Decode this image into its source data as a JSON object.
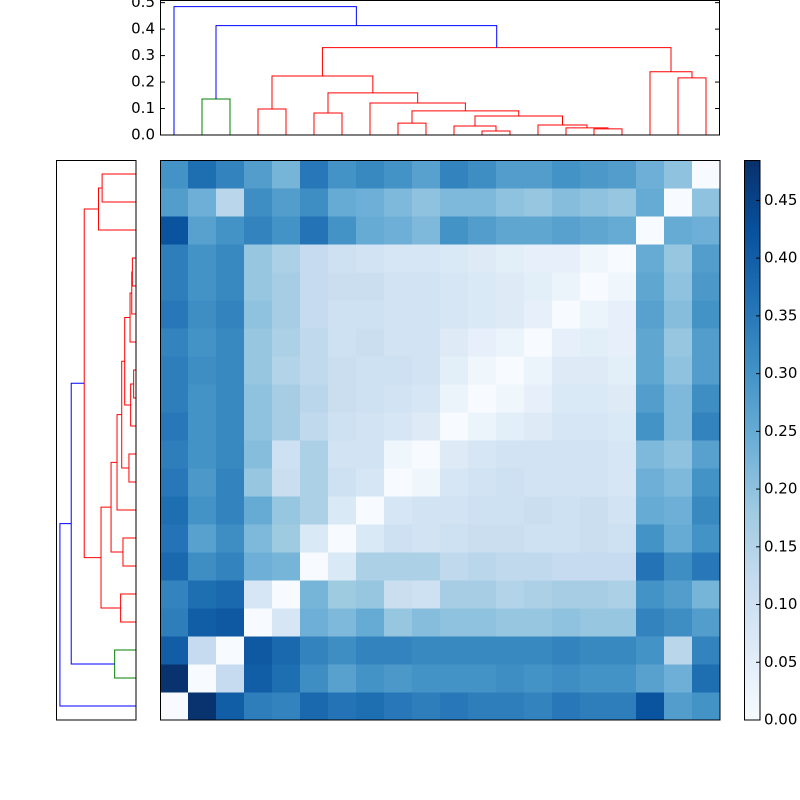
{
  "chart_data": {
    "type": "heatmap",
    "colormap": "Blues",
    "clim": [
      0,
      0.485
    ],
    "cticks": [
      {
        "value": 0,
        "label": "0.00"
      },
      {
        "value": 0.05,
        "label": "0.05"
      },
      {
        "value": 0.1,
        "label": "0.10"
      },
      {
        "value": 0.15,
        "label": "0.15"
      },
      {
        "value": 0.2,
        "label": "0.20"
      },
      {
        "value": 0.25,
        "label": "0.25"
      },
      {
        "value": 0.3,
        "label": "0.30"
      },
      {
        "value": 0.35,
        "label": "0.35"
      },
      {
        "value": 0.4,
        "label": "0.40"
      },
      {
        "value": 0.45,
        "label": "0.45"
      }
    ],
    "dendrogram_xlim": [
      0,
      200
    ],
    "ylim": [
      0,
      0.51
    ],
    "yticks": [
      {
        "value": 0,
        "label": "0.0"
      },
      {
        "value": 0.1,
        "label": "0.1"
      },
      {
        "value": 0.2,
        "label": "0.2"
      },
      {
        "value": 0.3,
        "label": "0.3"
      },
      {
        "value": 0.4,
        "label": "0.4"
      },
      {
        "value": 0.5,
        "label": "0.5"
      }
    ],
    "links": [
      {
        "icoord": [
          15,
          15,
          25,
          25
        ],
        "dcoord": [
          0,
          0.136,
          0.136,
          0
        ],
        "color": "#008000"
      },
      {
        "icoord": [
          35,
          35,
          45,
          45
        ],
        "dcoord": [
          0,
          0.098,
          0.098,
          0
        ],
        "color": "#ff0000"
      },
      {
        "icoord": [
          55,
          55,
          65,
          65
        ],
        "dcoord": [
          0,
          0.083,
          0.083,
          0
        ],
        "color": "#ff0000"
      },
      {
        "icoord": [
          85,
          85,
          95,
          95
        ],
        "dcoord": [
          0,
          0.045,
          0.045,
          0
        ],
        "color": "#ff0000"
      },
      {
        "icoord": [
          115,
          115,
          125,
          125
        ],
        "dcoord": [
          0,
          0.015,
          0.015,
          0
        ],
        "color": "#ff0000"
      },
      {
        "icoord": [
          105,
          105,
          120,
          120
        ],
        "dcoord": [
          0,
          0.034,
          0.034,
          0.015
        ],
        "color": "#ff0000"
      },
      {
        "icoord": [
          155,
          155,
          165,
          165
        ],
        "dcoord": [
          0,
          0.023,
          0.023,
          0
        ],
        "color": "#ff0000"
      },
      {
        "icoord": [
          145,
          145,
          160,
          160
        ],
        "dcoord": [
          0,
          0.027,
          0.027,
          0.023
        ],
        "color": "#ff0000"
      },
      {
        "icoord": [
          135,
          135,
          152.5,
          152.5
        ],
        "dcoord": [
          0,
          0.038,
          0.038,
          0.027
        ],
        "color": "#ff0000"
      },
      {
        "icoord": [
          112.5,
          112.5,
          143.75,
          143.75
        ],
        "dcoord": [
          0.034,
          0.072,
          0.072,
          0.038
        ],
        "color": "#ff0000"
      },
      {
        "icoord": [
          90,
          90,
          128.125,
          128.125
        ],
        "dcoord": [
          0.045,
          0.091,
          0.091,
          0.072
        ],
        "color": "#ff0000"
      },
      {
        "icoord": [
          75,
          75,
          109.0625,
          109.0625
        ],
        "dcoord": [
          0,
          0.121,
          0.121,
          0.091
        ],
        "color": "#ff0000"
      },
      {
        "icoord": [
          60,
          60,
          92.03125,
          92.03125
        ],
        "dcoord": [
          0.083,
          0.159,
          0.159,
          0.121
        ],
        "color": "#ff0000"
      },
      {
        "icoord": [
          40,
          40,
          76.015625,
          76.015625
        ],
        "dcoord": [
          0.098,
          0.223,
          0.223,
          0.159
        ],
        "color": "#ff0000"
      },
      {
        "icoord": [
          185,
          185,
          195,
          195
        ],
        "dcoord": [
          0,
          0.216,
          0.216,
          0
        ],
        "color": "#ff0000"
      },
      {
        "icoord": [
          175,
          175,
          190,
          190
        ],
        "dcoord": [
          0,
          0.239,
          0.239,
          0.216
        ],
        "color": "#ff0000"
      },
      {
        "icoord": [
          58.0078125,
          58.0078125,
          182.5,
          182.5
        ],
        "dcoord": [
          0.223,
          0.33,
          0.33,
          0.239
        ],
        "color": "#ff0000"
      },
      {
        "icoord": [
          20,
          20,
          120.25390625,
          120.25390625
        ],
        "dcoord": [
          0.136,
          0.413,
          0.413,
          0.33
        ],
        "color": "#0000ff"
      },
      {
        "icoord": [
          5,
          5,
          70.126953125,
          70.126953125
        ],
        "dcoord": [
          0,
          0.485,
          0.485,
          0.413
        ],
        "color": "#0000ff"
      }
    ],
    "matrix": [
      [
        0,
        0.48,
        0.4,
        0.34,
        0.33,
        0.38,
        0.36,
        0.37,
        0.35,
        0.34,
        0.35,
        0.34,
        0.34,
        0.33,
        0.35,
        0.34,
        0.34,
        0.42,
        0.28,
        0.3
      ],
      [
        0.48,
        0,
        0.12,
        0.4,
        0.37,
        0.31,
        0.27,
        0.3,
        0.29,
        0.3,
        0.3,
        0.3,
        0.31,
        0.3,
        0.31,
        0.3,
        0.3,
        0.27,
        0.24,
        0.37
      ],
      [
        0.4,
        0.12,
        0,
        0.41,
        0.38,
        0.33,
        0.31,
        0.33,
        0.33,
        0.32,
        0.32,
        0.32,
        0.32,
        0.32,
        0.33,
        0.32,
        0.32,
        0.3,
        0.14,
        0.33
      ],
      [
        0.34,
        0.4,
        0.41,
        0,
        0.08,
        0.24,
        0.22,
        0.25,
        0.19,
        0.21,
        0.2,
        0.2,
        0.19,
        0.19,
        0.2,
        0.19,
        0.19,
        0.33,
        0.31,
        0.28
      ],
      [
        0.33,
        0.37,
        0.38,
        0.08,
        0,
        0.23,
        0.18,
        0.19,
        0.11,
        0.1,
        0.17,
        0.17,
        0.15,
        0.16,
        0.17,
        0.17,
        0.16,
        0.3,
        0.28,
        0.23
      ],
      [
        0.38,
        0.31,
        0.33,
        0.24,
        0.23,
        0,
        0.07,
        0.16,
        0.16,
        0.16,
        0.13,
        0.14,
        0.13,
        0.13,
        0.12,
        0.12,
        0.12,
        0.36,
        0.31,
        0.35
      ],
      [
        0.36,
        0.27,
        0.31,
        0.22,
        0.18,
        0.07,
        0,
        0.07,
        0.1,
        0.09,
        0.1,
        0.11,
        0.11,
        0.1,
        0.1,
        0.11,
        0.1,
        0.3,
        0.25,
        0.3
      ],
      [
        0.37,
        0.3,
        0.33,
        0.25,
        0.19,
        0.16,
        0.07,
        0,
        0.08,
        0.09,
        0.09,
        0.1,
        0.1,
        0.11,
        0.1,
        0.11,
        0.09,
        0.25,
        0.24,
        0.32
      ],
      [
        0.35,
        0.29,
        0.33,
        0.19,
        0.11,
        0.16,
        0.1,
        0.08,
        0,
        0.02,
        0.08,
        0.09,
        0.1,
        0.09,
        0.09,
        0.09,
        0.08,
        0.24,
        0.22,
        0.3
      ],
      [
        0.34,
        0.3,
        0.32,
        0.21,
        0.1,
        0.16,
        0.09,
        0.09,
        0.02,
        0,
        0.06,
        0.08,
        0.09,
        0.09,
        0.09,
        0.09,
        0.08,
        0.22,
        0.2,
        0.27
      ],
      [
        0.35,
        0.3,
        0.32,
        0.2,
        0.17,
        0.13,
        0.1,
        0.09,
        0.08,
        0.06,
        0,
        0.03,
        0.05,
        0.06,
        0.08,
        0.08,
        0.07,
        0.3,
        0.22,
        0.33
      ],
      [
        0.34,
        0.3,
        0.32,
        0.2,
        0.17,
        0.14,
        0.11,
        0.1,
        0.09,
        0.08,
        0.03,
        0,
        0.02,
        0.04,
        0.07,
        0.07,
        0.06,
        0.28,
        0.22,
        0.31
      ],
      [
        0.34,
        0.31,
        0.32,
        0.19,
        0.15,
        0.13,
        0.11,
        0.1,
        0.1,
        0.09,
        0.05,
        0.02,
        0,
        0.03,
        0.06,
        0.06,
        0.05,
        0.26,
        0.2,
        0.28
      ],
      [
        0.33,
        0.3,
        0.32,
        0.19,
        0.16,
        0.13,
        0.1,
        0.11,
        0.09,
        0.09,
        0.06,
        0.04,
        0.03,
        0,
        0.04,
        0.05,
        0.04,
        0.26,
        0.19,
        0.28
      ],
      [
        0.35,
        0.31,
        0.33,
        0.2,
        0.17,
        0.12,
        0.1,
        0.1,
        0.09,
        0.09,
        0.08,
        0.07,
        0.06,
        0.04,
        0,
        0.03,
        0.04,
        0.27,
        0.21,
        0.3
      ],
      [
        0.34,
        0.3,
        0.32,
        0.19,
        0.17,
        0.12,
        0.11,
        0.11,
        0.09,
        0.09,
        0.08,
        0.07,
        0.06,
        0.05,
        0.03,
        0,
        0.02,
        0.26,
        0.2,
        0.29
      ],
      [
        0.34,
        0.3,
        0.32,
        0.19,
        0.16,
        0.12,
        0.1,
        0.09,
        0.08,
        0.08,
        0.07,
        0.06,
        0.05,
        0.04,
        0.04,
        0.02,
        0,
        0.25,
        0.19,
        0.28
      ],
      [
        0.42,
        0.27,
        0.3,
        0.33,
        0.3,
        0.36,
        0.3,
        0.25,
        0.24,
        0.22,
        0.3,
        0.28,
        0.26,
        0.26,
        0.27,
        0.26,
        0.25,
        0,
        0.25,
        0.24
      ],
      [
        0.28,
        0.24,
        0.14,
        0.31,
        0.28,
        0.31,
        0.25,
        0.24,
        0.22,
        0.2,
        0.22,
        0.22,
        0.2,
        0.19,
        0.21,
        0.2,
        0.19,
        0.25,
        0,
        0.2
      ],
      [
        0.3,
        0.37,
        0.33,
        0.28,
        0.23,
        0.35,
        0.3,
        0.32,
        0.3,
        0.27,
        0.33,
        0.31,
        0.28,
        0.28,
        0.3,
        0.29,
        0.28,
        0.24,
        0.2,
        0
      ]
    ]
  }
}
